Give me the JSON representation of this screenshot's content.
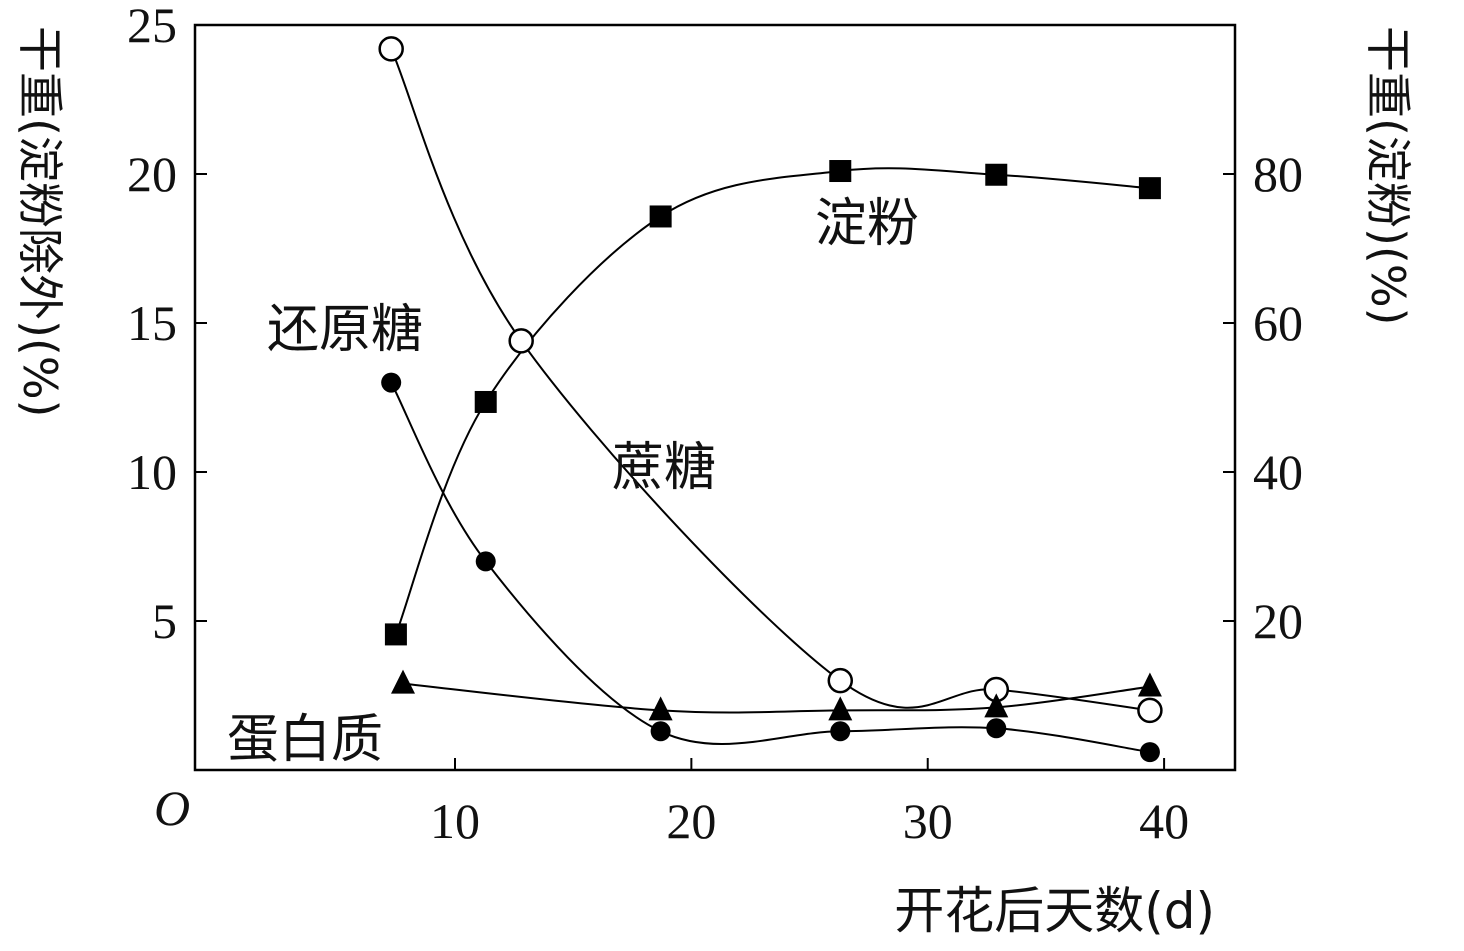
{
  "chart_data": {
    "type": "line",
    "x_axis": {
      "label": "开花后天数(d)",
      "range": [
        -1,
        43
      ],
      "ticks": [
        10,
        20,
        30,
        40
      ],
      "origin_label": "O"
    },
    "y_axis_left": {
      "label": "干重(淀粉除外)(%)",
      "range": [
        0,
        25
      ],
      "ticks": [
        5,
        10,
        15,
        20,
        25
      ]
    },
    "y_axis_right": {
      "label": "干重(淀粉)(%)",
      "range": [
        0,
        100
      ],
      "ticks": [
        20,
        40,
        60,
        80
      ]
    },
    "series": [
      {
        "name": "淀粉",
        "marker": "filled-square",
        "axis": "right",
        "x": [
          7.5,
          11.3,
          18.7,
          26.3,
          32.9,
          39.4
        ],
        "y": [
          18.2,
          49.4,
          74.3,
          80.4,
          79.9,
          78.1
        ]
      },
      {
        "name": "蔗糖",
        "marker": "open-circle",
        "axis": "left",
        "x": [
          7.3,
          12.8,
          26.3,
          32.9,
          39.4
        ],
        "y": [
          24.2,
          14.4,
          3.0,
          2.7,
          2.0
        ]
      },
      {
        "name": "还原糖",
        "marker": "filled-circle",
        "axis": "left",
        "x": [
          7.3,
          11.3,
          18.7,
          26.3,
          32.9,
          39.4
        ],
        "y": [
          13.0,
          7.0,
          1.3,
          1.3,
          1.4,
          0.6
        ]
      },
      {
        "name": "蛋白质",
        "marker": "filled-triangle",
        "axis": "left",
        "x": [
          7.8,
          18.7,
          26.3,
          32.9,
          39.4
        ],
        "y": [
          2.9,
          2.0,
          2.0,
          2.1,
          2.8
        ]
      }
    ]
  }
}
